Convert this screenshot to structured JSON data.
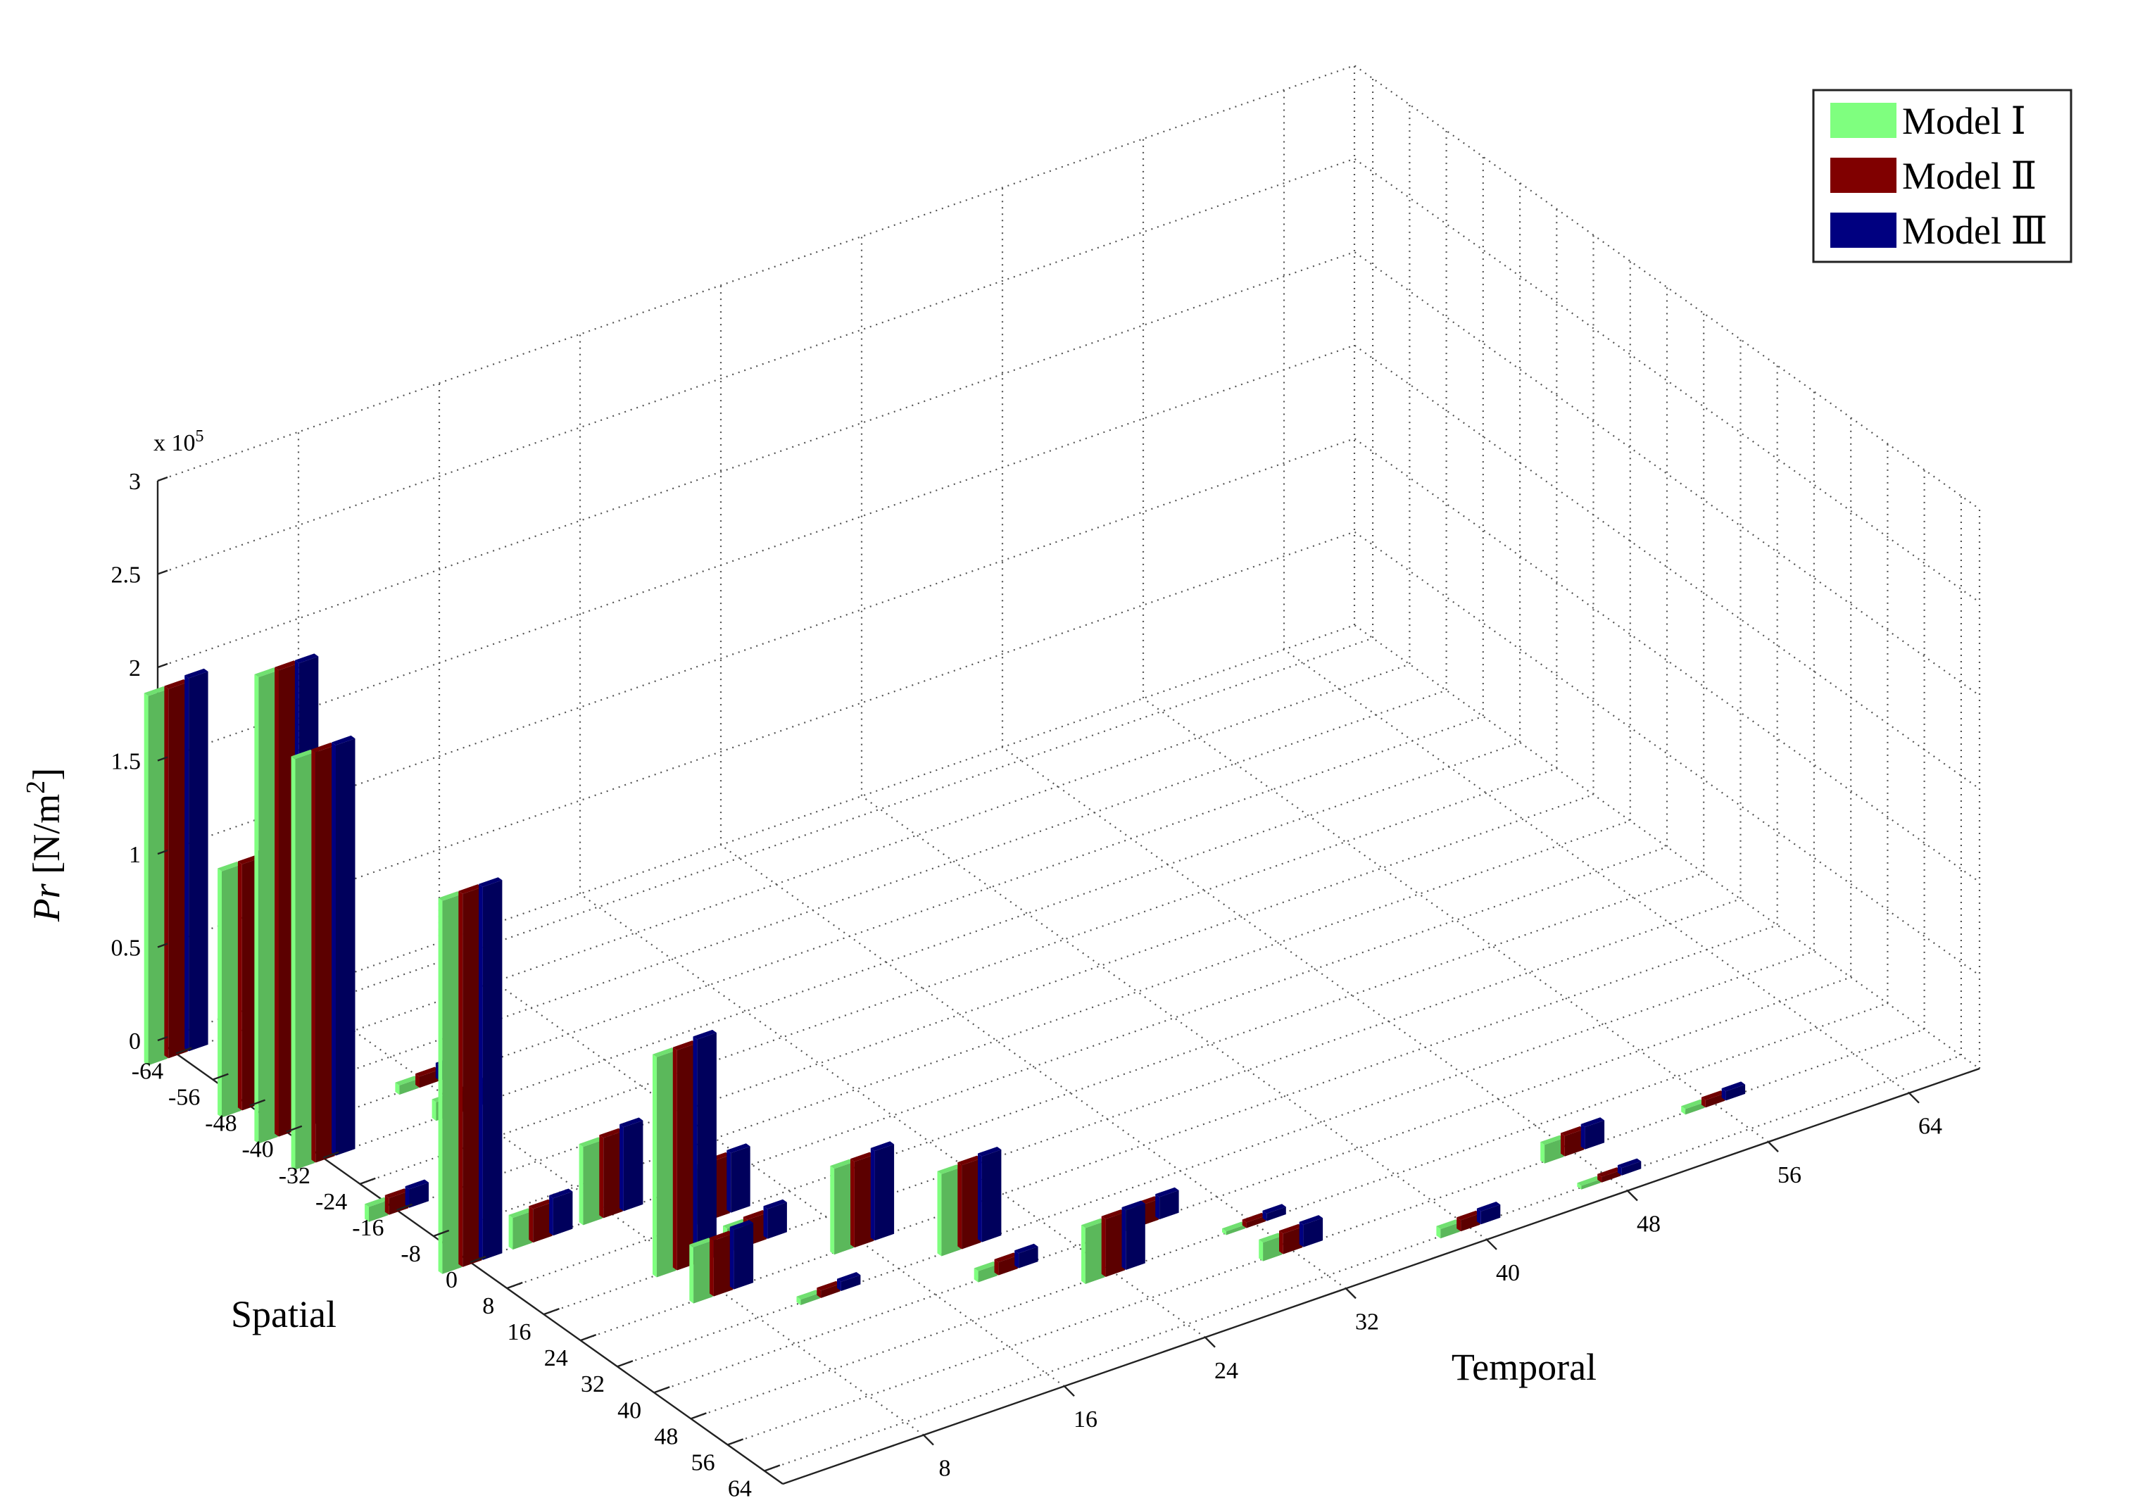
{
  "chart_data": {
    "type": "bar3d",
    "zlabel_prefix": "Pr",
    "zlabel_unit": " [N/m",
    "zlabel_exp": "2",
    "zlabel_close": "]",
    "xlabel": "Spatial",
    "ylabel": "Temporal",
    "z_multiplier_base": "x 10",
    "z_multiplier_exp": "5",
    "z_ticks": [
      "0",
      "0.5",
      "1",
      "1.5",
      "2",
      "2.5",
      "3"
    ],
    "z_tick_values": [
      0,
      0.5,
      1,
      1.5,
      2,
      2.5,
      3
    ],
    "zlim": [
      0,
      3
    ],
    "spatial_ticks": [
      "-64",
      "-56",
      "-48",
      "-40",
      "-32",
      "-24",
      "-16",
      "-8",
      "0",
      "8",
      "16",
      "24",
      "32",
      "40",
      "48",
      "56",
      "64"
    ],
    "temporal_ticks": [
      "8",
      "16",
      "24",
      "32",
      "40",
      "48",
      "56",
      "64"
    ],
    "xlim": [
      -68,
      68
    ],
    "ylim": [
      0,
      68
    ],
    "grid": true,
    "legend_position": "top-right",
    "legend": [
      {
        "label": "Model Ⅰ",
        "color": "#7fff7f"
      },
      {
        "label": "Model Ⅱ",
        "color": "#800000"
      },
      {
        "label": "Model Ⅲ",
        "color": "#000080"
      }
    ],
    "series_colors": [
      "#7fff7f",
      "#800000",
      "#000080"
    ],
    "bars": [
      {
        "x": -64,
        "y": 0,
        "z": [
          1.98,
          1.98,
          2.0
        ]
      },
      {
        "x": -56,
        "y": 4,
        "z": [
          0.1,
          0.11,
          0.12
        ]
      },
      {
        "x": -48,
        "y": 0,
        "z": [
          1.32,
          1.32,
          1.34
        ]
      },
      {
        "x": -40,
        "y": 0,
        "z": [
          2.5,
          2.5,
          2.5
        ]
      },
      {
        "x": -40,
        "y": 8,
        "z": [
          0.05,
          0.06,
          0.08
        ]
      },
      {
        "x": -32,
        "y": 0,
        "z": [
          2.2,
          2.2,
          2.2
        ]
      },
      {
        "x": -32,
        "y": 8,
        "z": [
          0.1,
          0.11,
          0.12
        ]
      },
      {
        "x": -16,
        "y": 0,
        "z": [
          0.08,
          0.09,
          0.1
        ]
      },
      {
        "x": 0,
        "y": 0,
        "z": [
          2.0,
          2.0,
          2.0
        ]
      },
      {
        "x": 0,
        "y": 4,
        "z": [
          0.17,
          0.18,
          0.2
        ]
      },
      {
        "x": 0,
        "y": 8,
        "z": [
          0.42,
          0.43,
          0.45
        ]
      },
      {
        "x": 8,
        "y": 12,
        "z": [
          0.3,
          0.31,
          0.32
        ]
      },
      {
        "x": 16,
        "y": 8,
        "z": [
          1.18,
          1.18,
          1.2
        ]
      },
      {
        "x": 16,
        "y": 12,
        "z": [
          0.13,
          0.14,
          0.16
        ]
      },
      {
        "x": 24,
        "y": 8,
        "z": [
          0.3,
          0.3,
          0.32
        ]
      },
      {
        "x": 24,
        "y": 16,
        "z": [
          0.46,
          0.46,
          0.48
        ]
      },
      {
        "x": 32,
        "y": 12,
        "z": [
          0.03,
          0.04,
          0.05
        ]
      },
      {
        "x": 32,
        "y": 20,
        "z": [
          0.44,
          0.45,
          0.46
        ]
      },
      {
        "x": 40,
        "y": 20,
        "z": [
          0.06,
          0.07,
          0.08
        ]
      },
      {
        "x": 40,
        "y": 28,
        "z": [
          0.1,
          0.11,
          0.12
        ]
      },
      {
        "x": 48,
        "y": 24,
        "z": [
          0.3,
          0.31,
          0.32
        ]
      },
      {
        "x": 48,
        "y": 32,
        "z": [
          0.02,
          0.03,
          0.04
        ]
      },
      {
        "x": 56,
        "y": 32,
        "z": [
          0.1,
          0.11,
          0.12
        ]
      },
      {
        "x": 56,
        "y": 48,
        "z": [
          0.1,
          0.11,
          0.12
        ]
      },
      {
        "x": 56,
        "y": 56,
        "z": [
          0.03,
          0.04,
          0.05
        ]
      },
      {
        "x": 64,
        "y": 40,
        "z": [
          0.05,
          0.06,
          0.07
        ]
      },
      {
        "x": 64,
        "y": 48,
        "z": [
          0.02,
          0.03,
          0.04
        ]
      }
    ]
  }
}
